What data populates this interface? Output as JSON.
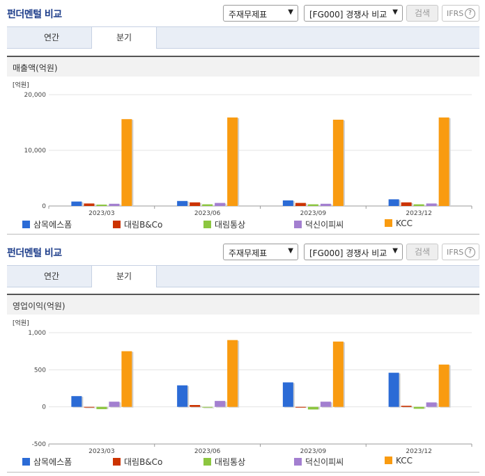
{
  "panels": [
    {
      "header": {
        "title": "펀더멘털 비교",
        "select1": "주재무제표",
        "select2": "[FG000] 경쟁사 비교",
        "search_label": "검색",
        "ifrs_label": "IFRS",
        "help_icon": "?"
      },
      "tabs": [
        {
          "label": "연간"
        },
        {
          "label": "분기"
        }
      ],
      "section_title": "매출액(억원)"
    },
    {
      "header": {
        "title": "펀더멘털 비교",
        "select1": "주재무제표",
        "select2": "[FG000] 경쟁사 비교",
        "search_label": "검색",
        "ifrs_label": "IFRS",
        "help_icon": "?"
      },
      "tabs": [
        {
          "label": "연간"
        },
        {
          "label": "분기"
        }
      ],
      "section_title": "영업이익(억원)"
    }
  ],
  "colors": {
    "삼목에스폼": "#2b6bd6",
    "대림B&Co": "#cc3300",
    "대림통상": "#8cc63f",
    "덕신이피씨": "#a37fd0",
    "KCC": "#f99b10"
  },
  "chart_data": [
    {
      "type": "bar",
      "unit_label": "[억원]",
      "categories": [
        "2023/03",
        "2023/06",
        "2023/09",
        "2023/12"
      ],
      "ylim": [
        0,
        20000
      ],
      "yticks": [
        "0",
        "10,000",
        "20,000"
      ],
      "ytick_values": [
        0,
        10000,
        20000
      ],
      "series": [
        {
          "name": "삼목에스폼",
          "values": [
            800,
            900,
            1000,
            1200
          ]
        },
        {
          "name": "대림B&Co",
          "values": [
            450,
            650,
            550,
            650
          ]
        },
        {
          "name": "대림통상",
          "values": [
            250,
            300,
            300,
            300
          ]
        },
        {
          "name": "덕신이피씨",
          "values": [
            400,
            550,
            400,
            450
          ]
        },
        {
          "name": "KCC",
          "values": [
            15600,
            15900,
            15500,
            15900
          ]
        }
      ],
      "grid": true,
      "legend": "bottom"
    },
    {
      "type": "bar",
      "unit_label": "[억원]",
      "categories": [
        "2023/03",
        "2023/06",
        "2023/09",
        "2023/12"
      ],
      "ylim": [
        -500,
        1000
      ],
      "yticks": [
        "-500",
        "0",
        "500",
        "1,000"
      ],
      "ytick_values": [
        -500,
        0,
        500,
        1000
      ],
      "series": [
        {
          "name": "삼목에스폼",
          "values": [
            145,
            290,
            330,
            460
          ]
        },
        {
          "name": "대림B&Co",
          "values": [
            0,
            25,
            -10,
            15
          ]
        },
        {
          "name": "대림통상",
          "values": [
            -30,
            0,
            -35,
            -25
          ]
        },
        {
          "name": "덕신이피씨",
          "values": [
            70,
            80,
            70,
            60
          ]
        },
        {
          "name": "KCC",
          "values": [
            750,
            900,
            880,
            570
          ]
        }
      ],
      "grid": true,
      "legend": "bottom"
    }
  ]
}
